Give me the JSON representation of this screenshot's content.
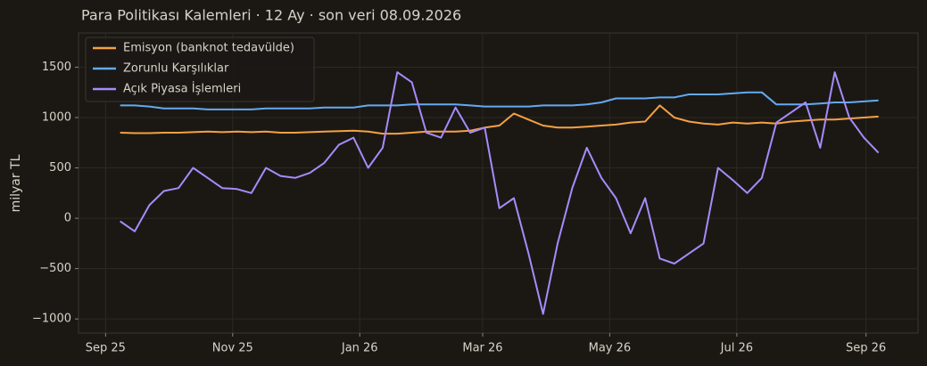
{
  "chart_data": {
    "type": "line",
    "title": "Para Politikası Kalemleri · 12 Ay · son veri 08.09.2026",
    "y_label": "milyar TL",
    "x": [
      "2025-09-08",
      "2025-09-15",
      "2025-09-22",
      "2025-09-29",
      "2025-10-06",
      "2025-10-13",
      "2025-10-20",
      "2025-10-27",
      "2025-11-03",
      "2025-11-10",
      "2025-11-17",
      "2025-11-24",
      "2025-12-01",
      "2025-12-08",
      "2025-12-15",
      "2025-12-22",
      "2025-12-29",
      "2026-01-05",
      "2026-01-12",
      "2026-01-19",
      "2026-01-26",
      "2026-02-02",
      "2026-02-09",
      "2026-02-16",
      "2026-02-23",
      "2026-03-02",
      "2026-03-09",
      "2026-03-16",
      "2026-03-23",
      "2026-03-30",
      "2026-04-06",
      "2026-04-13",
      "2026-04-20",
      "2026-04-27",
      "2026-05-04",
      "2026-05-11",
      "2026-05-18",
      "2026-05-25",
      "2026-06-01",
      "2026-06-08",
      "2026-06-15",
      "2026-06-22",
      "2026-06-29",
      "2026-07-06",
      "2026-07-13",
      "2026-07-20",
      "2026-07-27",
      "2026-08-03",
      "2026-08-10",
      "2026-08-17",
      "2026-08-24",
      "2026-08-31",
      "2026-09-07"
    ],
    "series": [
      {
        "name": "Emisyon (banknot tedavülde)",
        "color": "#f5a142",
        "values": [
          850,
          845,
          845,
          850,
          850,
          855,
          860,
          855,
          860,
          855,
          860,
          850,
          850,
          855,
          860,
          865,
          870,
          860,
          840,
          840,
          850,
          860,
          860,
          860,
          870,
          900,
          920,
          1040,
          980,
          920,
          900,
          900,
          910,
          920,
          930,
          950,
          960,
          1120,
          1000,
          960,
          940,
          930,
          950,
          940,
          950,
          940,
          960,
          970,
          980,
          980,
          990,
          1000,
          1010
        ]
      },
      {
        "name": "Zorunlu Karşılıklar",
        "color": "#63aaf2",
        "values": [
          1120,
          1120,
          1110,
          1090,
          1090,
          1090,
          1080,
          1080,
          1080,
          1080,
          1090,
          1090,
          1090,
          1090,
          1100,
          1100,
          1100,
          1120,
          1120,
          1120,
          1130,
          1130,
          1130,
          1130,
          1120,
          1110,
          1110,
          1110,
          1110,
          1120,
          1120,
          1120,
          1130,
          1150,
          1190,
          1190,
          1190,
          1200,
          1200,
          1230,
          1230,
          1230,
          1240,
          1250,
          1250,
          1130,
          1130,
          1130,
          1140,
          1150,
          1150,
          1160,
          1170
        ]
      },
      {
        "name": "Açık Piyasa İşlemleri",
        "color": "#a78bfa",
        "values": [
          -30,
          -130,
          130,
          270,
          300,
          500,
          400,
          300,
          290,
          250,
          500,
          420,
          400,
          450,
          550,
          730,
          800,
          500,
          700,
          1450,
          1350,
          850,
          800,
          1100,
          850,
          900,
          100,
          200,
          -350,
          -950,
          -250,
          300,
          700,
          400,
          200,
          -150,
          200,
          -400,
          -450,
          -350,
          -250,
          500,
          380,
          250,
          400,
          950,
          1050,
          1150,
          700,
          1450,
          1000,
          800,
          650
        ]
      }
    ],
    "xlim": [
      "2025-08-19",
      "2026-09-26"
    ],
    "xticks": [
      {
        "value": "2025-09-01",
        "label": "Sep 25"
      },
      {
        "value": "2025-11-01",
        "label": "Nov 25"
      },
      {
        "value": "2026-01-01",
        "label": "Jan 26"
      },
      {
        "value": "2026-03-01",
        "label": "Mar 26"
      },
      {
        "value": "2026-05-01",
        "label": "May 26"
      },
      {
        "value": "2026-07-01",
        "label": "Jul 26"
      },
      {
        "value": "2026-09-01",
        "label": "Sep 26"
      }
    ],
    "ylim": [
      -1140,
      1840
    ],
    "yticks": [
      {
        "value": -1000,
        "label": "−1000"
      },
      {
        "value": -500,
        "label": "−500"
      },
      0,
      500,
      1000,
      1500
    ],
    "grid": true,
    "legend": "upper-left"
  }
}
